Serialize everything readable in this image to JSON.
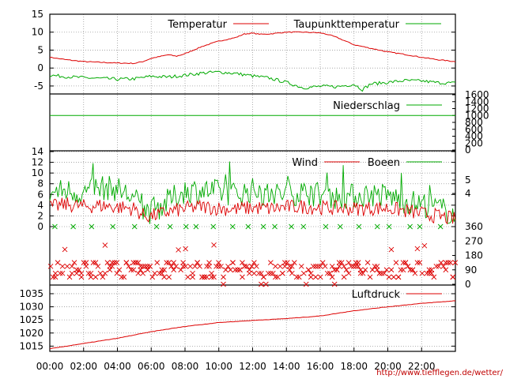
{
  "url_label": "http://www.tiefflegen.de/wetter/",
  "colors": {
    "red": "#dd0000",
    "green": "#00aa00",
    "grid": "#9a9a9a"
  },
  "x_axis": {
    "tick_labels": [
      "00:00",
      "02:00",
      "04:00",
      "06:00",
      "08:00",
      "10:00",
      "12:00",
      "14:00",
      "16:00",
      "18:00",
      "20:00",
      "22:00"
    ],
    "range_hours": [
      0,
      24
    ]
  },
  "chart_data": [
    {
      "type": "line",
      "panel": "temperature",
      "yticks": [
        "15",
        "10",
        "5",
        "0",
        "-5"
      ],
      "ylim": [
        -7,
        15
      ],
      "series": [
        {
          "name": "Temperatur",
          "color": "#dd0000",
          "x": [
            0,
            1,
            2,
            3,
            4,
            5,
            5.5,
            6,
            7,
            7.5,
            8,
            8.5,
            9,
            10,
            11,
            11.5,
            12,
            12.5,
            13,
            14,
            15,
            16,
            16.5,
            17,
            18,
            19,
            20,
            21,
            22,
            23,
            24
          ],
          "y": [
            3,
            2.3,
            1.8,
            1.6,
            1.4,
            1.3,
            1.8,
            2.7,
            3.7,
            3.3,
            4,
            5,
            6,
            7.5,
            8.5,
            9.5,
            9.7,
            9.4,
            9.5,
            10,
            10,
            9.8,
            9.3,
            8.5,
            6.5,
            5.5,
            4.5,
            3.8,
            3,
            2.3,
            1.8
          ]
        },
        {
          "name": "Taupunkttemperatur",
          "color": "#00aa00",
          "x": [
            0,
            1,
            2,
            3,
            4,
            5,
            6,
            7,
            8,
            9,
            10,
            11,
            12,
            13,
            14,
            15,
            16,
            17,
            18,
            18.5,
            19,
            20,
            21,
            22,
            23,
            24
          ],
          "y": [
            -2,
            -2.4,
            -2.7,
            -2.9,
            -3.1,
            -3,
            -2.3,
            -2.5,
            -2,
            -1.4,
            -1.1,
            -1.5,
            -2.2,
            -2.8,
            -4,
            -5.5,
            -5.1,
            -5.2,
            -4.5,
            -6,
            -4.4,
            -4,
            -3.5,
            -3.6,
            -4.1,
            -4.2
          ]
        }
      ]
    },
    {
      "type": "line",
      "panel": "precipitation",
      "yticks_right": [
        "1600",
        "1400",
        "1200",
        "1000",
        "800",
        "600",
        "400",
        "200",
        "0"
      ],
      "series": [
        {
          "name": "Niederschlag",
          "color": "#00aa00",
          "x": [
            0,
            24
          ],
          "y": [
            1000,
            1000
          ]
        }
      ]
    },
    {
      "type": "line",
      "panel": "wind",
      "yticks": [
        "14",
        "12",
        "10",
        "8",
        "6",
        "4",
        "2",
        "0"
      ],
      "yticks_right": [
        "5",
        "4"
      ],
      "ylim": [
        0,
        14
      ],
      "series": [
        {
          "name": "Wind",
          "color": "#dd0000",
          "x": [
            0,
            1,
            2,
            3,
            4,
            5,
            5.5,
            6,
            7,
            8,
            9,
            10,
            11,
            12,
            13,
            14,
            15,
            16,
            17,
            18,
            19,
            20,
            21,
            22,
            23,
            24
          ],
          "y": [
            3.5,
            4,
            3.6,
            3.8,
            3.5,
            3.2,
            2,
            1.8,
            2.6,
            3.2,
            3.6,
            3.3,
            3.1,
            3.4,
            3.2,
            3.5,
            3.6,
            3.4,
            3.3,
            3.2,
            3.3,
            3.3,
            2.8,
            2.3,
            1.8,
            1.2
          ]
        },
        {
          "name": "Boeen",
          "color": "#00aa00",
          "x": [
            0,
            1,
            2,
            3,
            4,
            5,
            5.5,
            6,
            7,
            8,
            9,
            10,
            11,
            12,
            13,
            14,
            15,
            16,
            17,
            18,
            19,
            20,
            21,
            22,
            23,
            24
          ],
          "y": [
            6,
            6.5,
            6,
            7,
            6.8,
            5,
            3,
            2.5,
            4.5,
            6.5,
            6.5,
            6.2,
            5.8,
            6.5,
            5.5,
            6,
            6.1,
            5.8,
            5.2,
            5.5,
            5.8,
            5.5,
            4.5,
            4,
            3.2,
            2
          ]
        }
      ]
    },
    {
      "type": "scatter",
      "panel": "wind_direction",
      "yticks_right": [
        "360",
        "270",
        "180",
        "90",
        "0"
      ],
      "ylim": [
        0,
        360
      ],
      "series": [
        {
          "name": "",
          "color": "#dd0000",
          "typical_range": [
            45,
            150
          ]
        },
        {
          "name": "",
          "color": "#00aa00",
          "y_constant": 360
        }
      ]
    },
    {
      "type": "line",
      "panel": "pressure",
      "yticks": [
        "1035",
        "1030",
        "1025",
        "1020",
        "1015"
      ],
      "ylim": [
        1013,
        1038
      ],
      "series": [
        {
          "name": "Luftdruck",
          "color": "#dd0000",
          "x": [
            0,
            2,
            4,
            6,
            8,
            10,
            12,
            14,
            16,
            18,
            20,
            22,
            24
          ],
          "y": [
            1014,
            1016,
            1018,
            1020.5,
            1022.5,
            1024,
            1024.8,
            1025.5,
            1026.5,
            1028.5,
            1030,
            1031.3,
            1032.3
          ]
        }
      ]
    }
  ]
}
